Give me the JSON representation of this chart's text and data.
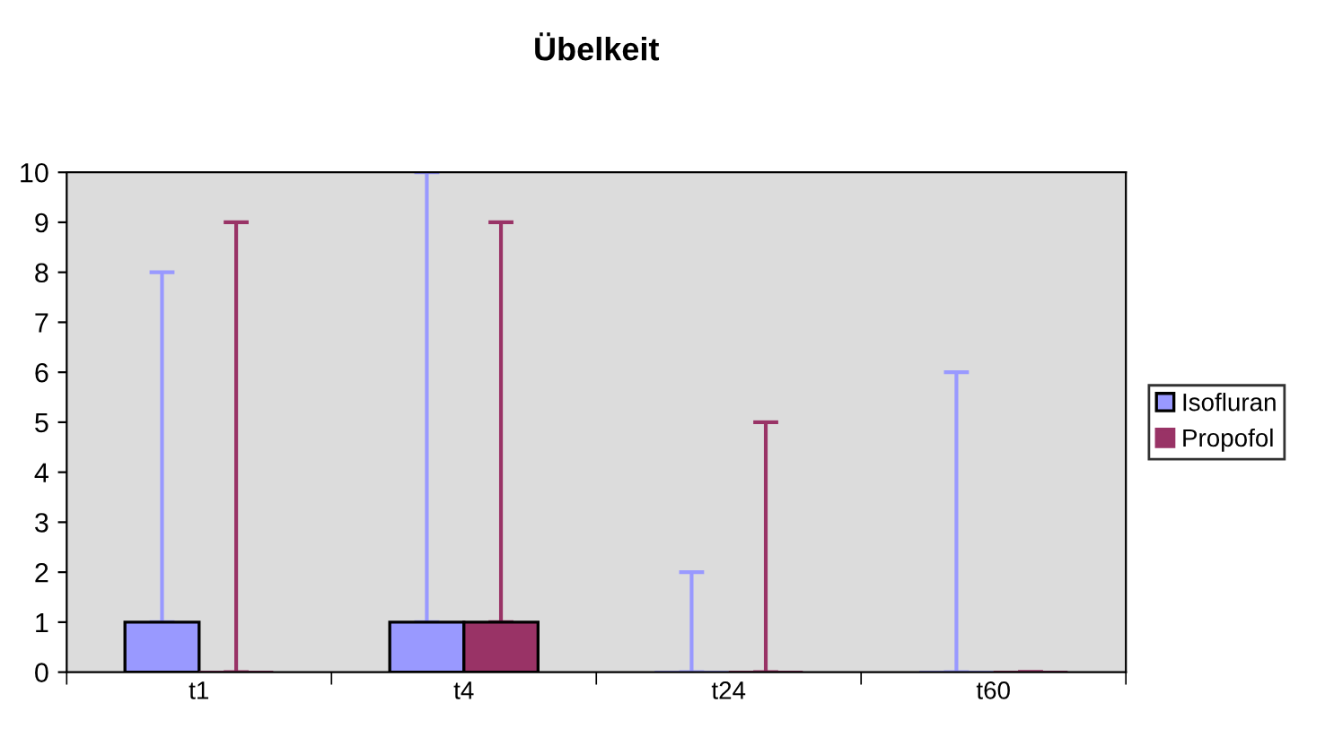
{
  "chart_data": {
    "type": "bar",
    "title": "Übelkeit",
    "categories": [
      "t1",
      "t4",
      "t24",
      "t60"
    ],
    "series": [
      {
        "name": "Isofluran",
        "color": "#9999ff",
        "values": [
          1,
          1,
          0,
          0
        ],
        "errors": [
          [
            1,
            8
          ],
          [
            1,
            10
          ],
          [
            0,
            2
          ],
          [
            0,
            6
          ]
        ]
      },
      {
        "name": "Propofol",
        "color": "#993366",
        "values": [
          0,
          1,
          0,
          0
        ],
        "errors": [
          [
            0,
            9
          ],
          [
            1,
            9
          ],
          [
            0,
            5
          ],
          [
            0,
            0
          ]
        ]
      }
    ],
    "ylim": [
      0,
      10
    ],
    "yticks": [
      0,
      1,
      2,
      3,
      4,
      5,
      6,
      7,
      8,
      9,
      10
    ],
    "grid": false,
    "legend": "right"
  }
}
